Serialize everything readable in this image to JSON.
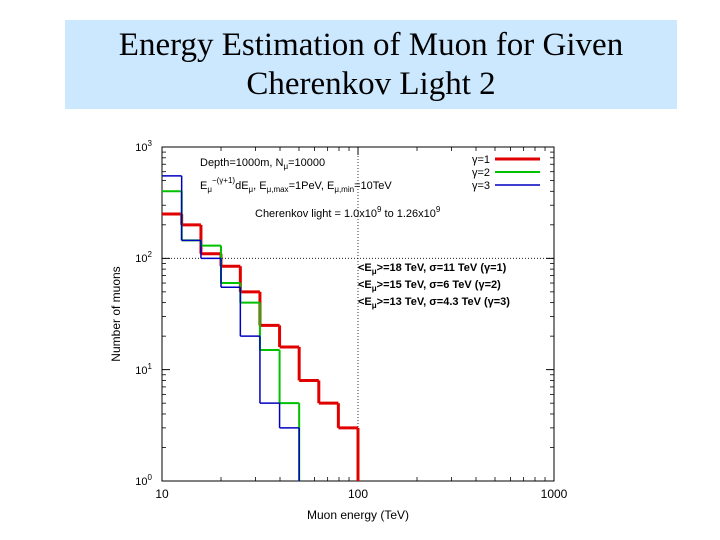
{
  "slide": {
    "title_line1": "Energy Estimation of Muon for Given",
    "title_line2": "Cherenkov Light 2"
  },
  "chart_data": {
    "type": "line",
    "step": true,
    "xscale": "log",
    "yscale": "log",
    "xlim": [
      10,
      1000
    ],
    "ylim": [
      1,
      1000
    ],
    "xlabel": "Muon energy (TeV)",
    "ylabel": "Number of muons",
    "x_ticks": [
      "10",
      "100",
      "1000"
    ],
    "y_ticks": [
      {
        "base": "10",
        "exp": "0"
      },
      {
        "base": "10",
        "exp": "1"
      },
      {
        "base": "10",
        "exp": "2"
      },
      {
        "base": "10",
        "exp": "3"
      }
    ],
    "annotations": {
      "line1_a": "Depth=1000m,  N",
      "line1_sub": "μ",
      "line1_b": "=10000",
      "line2_a": "E",
      "line2_sub": "μ",
      "line2_sup": "−(γ+1)",
      "line2_b": "dE",
      "line2_sub2": "μ",
      "line2_c": ",  E",
      "line2_sub3": "μ,max",
      "line2_d": "=1PeV,  E",
      "line2_sub4": "μ,min",
      "line2_e": "=10TeV",
      "line3_a": "Cherenkov light = 1.0x10",
      "line3_sup1": "9",
      "line3_b": " to 1.26x10",
      "line3_sup2": "9",
      "stats": [
        {
          "pre": "<E",
          "sub": "μ",
          "post": ">=18 TeV, σ=11 TeV (γ=1)"
        },
        {
          "pre": "<E",
          "sub": "μ",
          "post": ">=15 TeV, σ=6 TeV (γ=2)"
        },
        {
          "pre": "<E",
          "sub": "μ",
          "post": ">=13 TeV, σ=4.3 TeV (γ=3)"
        }
      ]
    },
    "series": [
      {
        "name": "γ=1",
        "color": "#e00000",
        "bins": [
          10,
          12.6,
          15.8,
          20,
          25.1,
          31.6,
          39.8,
          50.1,
          63.1,
          79.4,
          100
        ],
        "values": [
          250,
          200,
          110,
          85,
          50,
          25,
          16,
          8,
          5,
          3
        ]
      },
      {
        "name": "γ=2",
        "color": "#00c000",
        "bins": [
          10,
          12.6,
          15.8,
          20,
          25.1,
          31.6,
          39.8,
          50.1
        ],
        "values": [
          400,
          145,
          130,
          60,
          40,
          15,
          5
        ]
      },
      {
        "name": "γ=3",
        "color": "#0000c0",
        "bins": [
          10,
          12.6,
          15.8,
          20,
          25.1,
          31.6,
          39.8,
          50.1
        ],
        "values": [
          550,
          145,
          100,
          55,
          20,
          5,
          3
        ]
      }
    ],
    "reference_lines": {
      "x": 100,
      "y": 100
    }
  }
}
